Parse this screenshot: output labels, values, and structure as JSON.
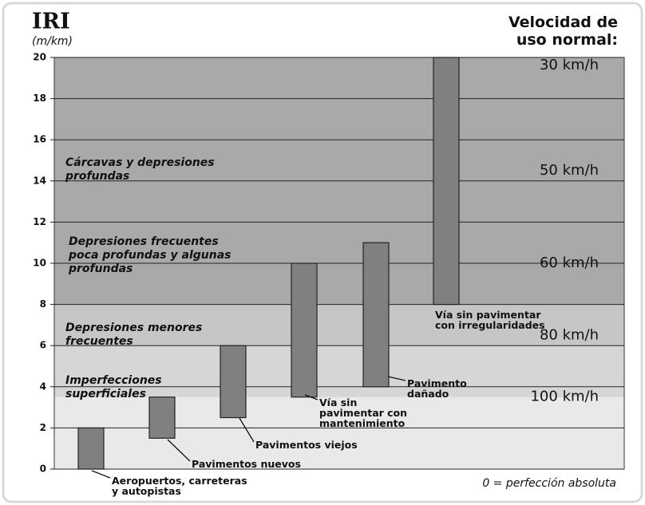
{
  "chart_data": {
    "type": "range-bar",
    "title": "IRI",
    "subtitle": "(m/km)",
    "speed_title": "Velocidad de\nuso normal:",
    "footnote": "0 = perfección absoluta",
    "categories": [
      "Aeropuertos, carreteras\ny autopistas",
      "Pavimentos nuevos",
      "Pavimentos viejos",
      "Vía sin\npavimentar  con\nmantenimiento",
      "Pavimento\ndañado",
      "Vía sin pavimentar\ncon irregularidades"
    ],
    "values": [
      [
        0,
        2
      ],
      [
        1.5,
        3.5
      ],
      [
        2.5,
        6
      ],
      [
        3.5,
        10
      ],
      [
        4,
        11
      ],
      [
        8,
        20
      ]
    ],
    "color": "#808080",
    "zones": [
      {
        "label": "Imperfecciones\nsuperficiales",
        "range": [
          0,
          3.5
        ],
        "color": "#e9e9e9"
      },
      {
        "label": "Depresiones menores\nfrecuentes",
        "range": [
          3.5,
          6
        ],
        "color": "#d6d6d6"
      },
      {
        "label": "Depresiones frecuentes\npoca profundas y algunas\nprofundas",
        "range": [
          6,
          8
        ],
        "color": "#c6c6c6"
      },
      {
        "label": "Cárcavas y depresiones\nprofundas",
        "range": [
          8,
          20
        ],
        "color": "#a9a9a9"
      }
    ],
    "speeds": [
      {
        "label": "30 km/h",
        "value": 20
      },
      {
        "label": "50 km/h",
        "value": 14.5
      },
      {
        "label": "60 km/h",
        "value": 10
      },
      {
        "label": "80 km/h",
        "value": 6.5
      },
      {
        "label": "100 km/h",
        "value": 3.5
      }
    ],
    "ylim": [
      0,
      20
    ],
    "yticks": [
      0,
      2,
      4,
      6,
      8,
      10,
      12,
      14,
      16,
      18,
      20
    ],
    "grid": true
  }
}
